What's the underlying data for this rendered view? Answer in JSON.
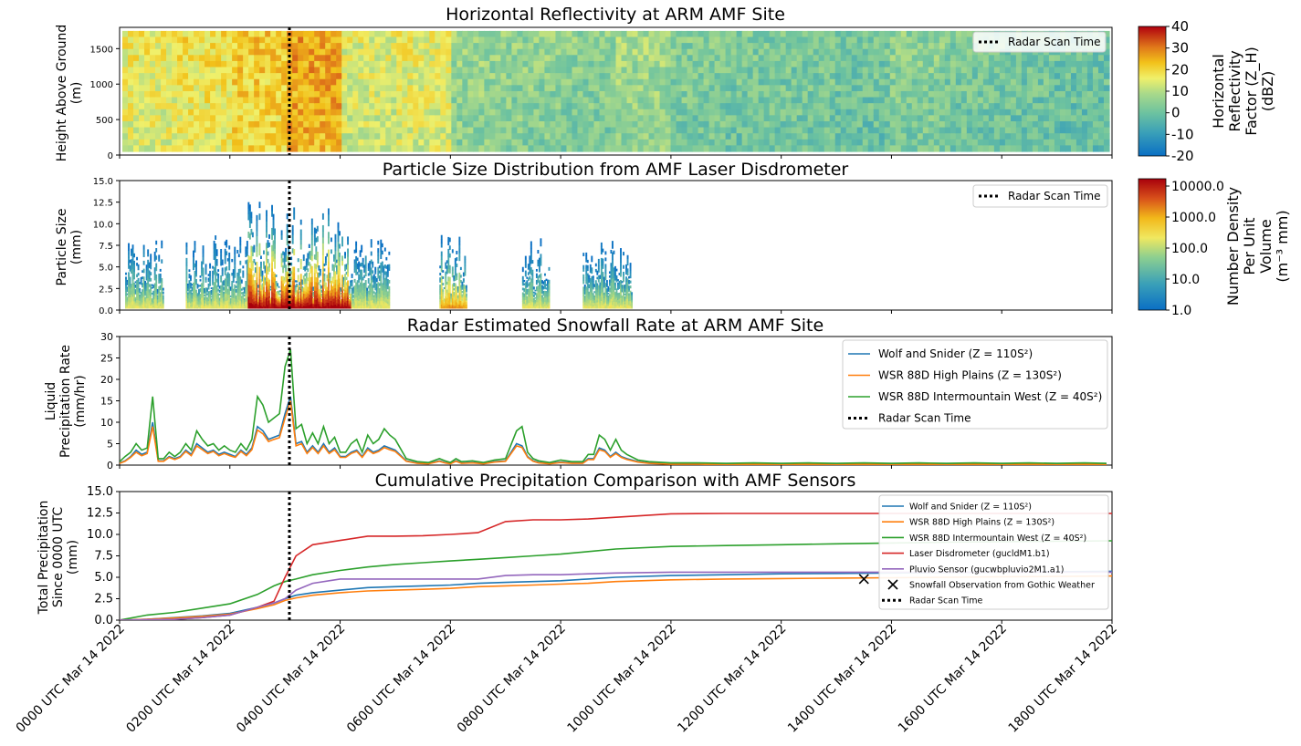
{
  "x_ticks": [
    "0000 UTC Mar 14 2022",
    "0200 UTC Mar 14 2022",
    "0400 UTC Mar 14 2022",
    "0600 UTC Mar 14 2022",
    "0800 UTC Mar 14 2022",
    "1000 UTC Mar 14 2022",
    "1200 UTC Mar 14 2022",
    "1400 UTC Mar 14 2022",
    "1600 UTC Mar 14 2022",
    "1800 UTC Mar 14 2022"
  ],
  "scan_time_hours": 3.08,
  "colors": {
    "wolf": "#1f77b4",
    "high_plains": "#ff7f0e",
    "intermountain": "#2ca02c",
    "disdrometer": "#d62728",
    "pluvio": "#9467bd",
    "obs": "#000000"
  },
  "chart_data": [
    {
      "type": "heatmap",
      "title": "Horizontal Reflectivity at ARM AMF Site",
      "ylabel": [
        "Height Above Ground",
        "(m)"
      ],
      "xlim": [
        0,
        18
      ],
      "ylim": [
        0,
        1800
      ],
      "yticks": [
        "0",
        "500",
        "1000",
        "1500"
      ],
      "colorbar": {
        "label": [
          "Horizontal",
          "Reflectivity",
          "Factor (Z_H)",
          "(dBZ)"
        ],
        "range": [
          -20,
          40
        ],
        "ticks": [
          "40",
          "30",
          "20",
          "10",
          "0",
          "-10",
          "-20"
        ],
        "colormap": "HomeyerRainbow"
      },
      "legend": [
        "Radar Scan Time"
      ],
      "hourly_mean_dbz": [
        14,
        16,
        19,
        24,
        12,
        13,
        4,
        3,
        2,
        5,
        1,
        0,
        0,
        -1,
        2,
        0,
        -1,
        -2
      ]
    },
    {
      "type": "heatmap",
      "title": "Particle Size Distribution from AMF Laser Disdrometer",
      "ylabel": [
        "Particle Size",
        "(mm)"
      ],
      "xlim": [
        0,
        18
      ],
      "ylim": [
        0,
        15
      ],
      "yticks": [
        "0.0",
        "2.5",
        "5.0",
        "7.5",
        "10.0",
        "12.5",
        "15.0"
      ],
      "colorbar": {
        "label": [
          "Number Density",
          "Per Unit",
          "Volume",
          "(m⁻³ mm)"
        ],
        "scale": "log",
        "range": [
          1,
          10000
        ],
        "ticks": [
          "10000.0",
          "1000.0",
          "100.0",
          "10.0",
          "1.0"
        ]
      },
      "legend": [
        "Radar Scan Time"
      ],
      "active_periods_hours": [
        [
          0.1,
          0.8
        ],
        [
          1.2,
          4.9
        ],
        [
          5.8,
          6.3
        ],
        [
          7.3,
          7.8
        ],
        [
          8.4,
          9.3
        ]
      ]
    },
    {
      "type": "line",
      "title": "Radar Estimated Snowfall Rate at ARM AMF Site",
      "ylabel": [
        "Liquid",
        "Precipitation Rate",
        "(mm/hr)"
      ],
      "xlim": [
        0,
        18
      ],
      "ylim": [
        0,
        30
      ],
      "yticks": [
        "0",
        "5",
        "10",
        "15",
        "20",
        "25",
        "30"
      ],
      "legend": [
        "Wolf and Snider (Z = 110S²)",
        "WSR 88D High Plains (Z = 130S²)",
        "WSR 88D Intermountain West (Z = 40S²)",
        "Radar Scan Time"
      ],
      "x_hours": [
        0.0,
        0.1,
        0.2,
        0.3,
        0.4,
        0.5,
        0.6,
        0.7,
        0.8,
        0.9,
        1.0,
        1.1,
        1.2,
        1.3,
        1.4,
        1.5,
        1.6,
        1.7,
        1.8,
        1.9,
        2.0,
        2.1,
        2.2,
        2.3,
        2.4,
        2.5,
        2.6,
        2.7,
        2.8,
        2.9,
        3.0,
        3.1,
        3.2,
        3.3,
        3.4,
        3.5,
        3.6,
        3.7,
        3.8,
        3.9,
        4.0,
        4.1,
        4.2,
        4.3,
        4.4,
        4.5,
        4.6,
        4.7,
        4.8,
        4.9,
        5.0,
        5.2,
        5.4,
        5.6,
        5.8,
        5.9,
        6.0,
        6.1,
        6.2,
        6.4,
        6.6,
        6.8,
        7.0,
        7.2,
        7.3,
        7.4,
        7.5,
        7.6,
        7.8,
        8.0,
        8.2,
        8.4,
        8.5,
        8.6,
        8.7,
        8.8,
        8.9,
        9.0,
        9.1,
        9.2,
        9.4,
        9.6,
        10.0,
        10.5,
        11.0,
        11.5,
        12.0,
        12.5,
        13.0,
        13.5,
        14.0,
        14.5,
        15.0,
        15.5,
        16.0,
        16.5,
        17.0,
        17.5,
        17.9
      ],
      "series": [
        {
          "name": "Wolf and Snider",
          "values": [
            0.5,
            1,
            2,
            3.5,
            2.5,
            3,
            10,
            1,
            1,
            2,
            1.5,
            2,
            3.5,
            2.5,
            5,
            4,
            3,
            3.5,
            2.5,
            3,
            2.5,
            2,
            3.5,
            2.5,
            4,
            9,
            8,
            6,
            6.5,
            7,
            12,
            16,
            5,
            5.5,
            3,
            4.5,
            3,
            5,
            3,
            4,
            2,
            2,
            3,
            3.5,
            2,
            4,
            3,
            3.5,
            4.5,
            4,
            3.5,
            1,
            0.5,
            0.4,
            1,
            0.6,
            0.4,
            1,
            0.5,
            0.6,
            0.4,
            0.8,
            1,
            5,
            4.5,
            2,
            1,
            0.6,
            0.4,
            0.7,
            0.5,
            0.5,
            1.5,
            1.5,
            4,
            3.5,
            2,
            3,
            2,
            1.5,
            0.8,
            0.5,
            0.3,
            0.3,
            0.2,
            0.3,
            0.2,
            0.3,
            0.2,
            0.3,
            0.2,
            0.3,
            0.2,
            0.3,
            0.2,
            0.3,
            0.2,
            0.3,
            0.2
          ]
        },
        {
          "name": "WSR 88D High Plains",
          "values": [
            0.4,
            0.9,
            1.8,
            3,
            2.2,
            2.7,
            9,
            0.9,
            0.9,
            1.8,
            1.3,
            1.8,
            3.2,
            2.2,
            4.5,
            3.6,
            2.7,
            3.2,
            2.2,
            2.7,
            2.2,
            1.8,
            3.2,
            2.2,
            3.6,
            8.2,
            7.3,
            5.5,
            6,
            6.4,
            11,
            15,
            4.5,
            5,
            2.7,
            4.1,
            2.7,
            4.5,
            2.7,
            3.6,
            1.8,
            1.8,
            2.7,
            3.2,
            1.8,
            3.6,
            2.7,
            3.2,
            4.1,
            3.6,
            3.2,
            0.9,
            0.4,
            0.3,
            0.9,
            0.5,
            0.3,
            0.9,
            0.4,
            0.5,
            0.3,
            0.7,
            0.9,
            4.5,
            4.1,
            1.8,
            0.9,
            0.5,
            0.3,
            0.6,
            0.4,
            0.4,
            1.3,
            1.3,
            3.6,
            3.2,
            1.8,
            2.7,
            1.8,
            1.3,
            0.7,
            0.4,
            0.2,
            0.2,
            0.1,
            0.2,
            0.1,
            0.2,
            0.1,
            0.2,
            0.1,
            0.2,
            0.1,
            0.2,
            0.1,
            0.2,
            0.1,
            0.2,
            0.1
          ]
        },
        {
          "name": "WSR 88D Intermountain West",
          "values": [
            0.8,
            2,
            3,
            5,
            3.5,
            4,
            16,
            1.5,
            1.5,
            3,
            2,
            3,
            5,
            3.5,
            8,
            6,
            4.5,
            5,
            3.5,
            4.5,
            3.5,
            3,
            5,
            3.5,
            6,
            16,
            14,
            10,
            11,
            12,
            23,
            27,
            8.5,
            9.5,
            5,
            7.5,
            5,
            9,
            5,
            6.5,
            3,
            3,
            5,
            6,
            3,
            7,
            5,
            6,
            8.5,
            7,
            6,
            1.5,
            0.8,
            0.6,
            1.5,
            1,
            0.6,
            1.5,
            0.8,
            1,
            0.6,
            1.2,
            1.5,
            8,
            9,
            3,
            1.5,
            1,
            0.6,
            1.2,
            0.8,
            0.8,
            2.5,
            2.5,
            7,
            6,
            3.5,
            6,
            3.5,
            2.5,
            1.2,
            0.8,
            0.5,
            0.5,
            0.4,
            0.5,
            0.4,
            0.5,
            0.4,
            0.5,
            0.4,
            0.5,
            0.4,
            0.5,
            0.4,
            0.5,
            0.4,
            0.5,
            0.4
          ]
        }
      ]
    },
    {
      "type": "line",
      "title": "Cumulative Precipitation Comparison with AMF Sensors",
      "ylabel": [
        "Total Precipitation",
        "Since 0000 UTC",
        "(mm)"
      ],
      "xlim": [
        0,
        18
      ],
      "ylim": [
        0,
        15
      ],
      "yticks": [
        "0.0",
        "2.5",
        "5.0",
        "7.5",
        "10.0",
        "12.5",
        "15.0"
      ],
      "legend": [
        "Wolf and Snider (Z = 110S²)",
        "WSR 88D High Plains (Z = 130S²)",
        "WSR 88D Intermountain West (Z = 40S²)",
        "Laser Disdrometer (gucldM1.b1)",
        "Pluvio Sensor (gucwbpluvio2M1.a1)",
        "Snowfall Observation from Gothic Weather",
        "Radar Scan Time"
      ],
      "x_hours": [
        0,
        0.5,
        1,
        1.5,
        2,
        2.5,
        2.8,
        3.0,
        3.2,
        3.5,
        4,
        4.5,
        5,
        5.5,
        6,
        6.5,
        7,
        7.5,
        8,
        8.5,
        9,
        10,
        11,
        12,
        13,
        14,
        15,
        16,
        17,
        18
      ],
      "series": [
        {
          "name": "Wolf and Snider",
          "values": [
            0,
            0.1,
            0.3,
            0.5,
            0.8,
            1.5,
            2.0,
            2.5,
            2.9,
            3.2,
            3.5,
            3.8,
            3.9,
            4.0,
            4.1,
            4.3,
            4.4,
            4.5,
            4.6,
            4.8,
            5.0,
            5.2,
            5.3,
            5.4,
            5.45,
            5.5,
            5.55,
            5.6,
            5.65,
            5.7
          ]
        },
        {
          "name": "WSR 88D High Plains",
          "values": [
            0,
            0.1,
            0.25,
            0.45,
            0.7,
            1.35,
            1.8,
            2.3,
            2.6,
            2.9,
            3.2,
            3.4,
            3.5,
            3.6,
            3.7,
            3.9,
            4.0,
            4.1,
            4.2,
            4.3,
            4.5,
            4.7,
            4.8,
            4.85,
            4.9,
            4.95,
            5.0,
            5.05,
            5.1,
            5.15
          ]
        },
        {
          "name": "WSR 88D Intermountain West",
          "values": [
            0,
            0.6,
            0.9,
            1.4,
            1.9,
            3.0,
            4.0,
            4.5,
            4.8,
            5.3,
            5.8,
            6.2,
            6.5,
            6.7,
            6.9,
            7.1,
            7.3,
            7.5,
            7.7,
            8.0,
            8.3,
            8.6,
            8.7,
            8.8,
            8.9,
            9.0,
            9.1,
            9.15,
            9.2,
            9.25
          ]
        },
        {
          "name": "Laser Disdrometer (gucldM1.b1)",
          "values": [
            0,
            0.05,
            0.1,
            0.3,
            0.6,
            1.5,
            2.2,
            5.0,
            7.5,
            8.8,
            9.3,
            9.8,
            9.8,
            9.85,
            10.0,
            10.2,
            11.5,
            11.7,
            11.7,
            11.8,
            12.0,
            12.4,
            12.45,
            12.45,
            12.45,
            12.45,
            12.45,
            12.45,
            12.45,
            12.45
          ]
        },
        {
          "name": "Pluvio Sensor (gucwbpluvio2M1.a1)",
          "values": [
            0,
            0.05,
            0.1,
            0.3,
            0.6,
            1.5,
            2.0,
            2.5,
            3.5,
            4.3,
            4.8,
            4.8,
            4.8,
            4.8,
            4.8,
            4.8,
            5.2,
            5.3,
            5.3,
            5.4,
            5.5,
            5.6,
            5.6,
            5.6,
            5.6,
            5.6,
            5.6,
            5.6,
            5.6,
            5.6
          ]
        }
      ],
      "observation": {
        "x_hours": 13.5,
        "value": 4.8
      }
    }
  ]
}
